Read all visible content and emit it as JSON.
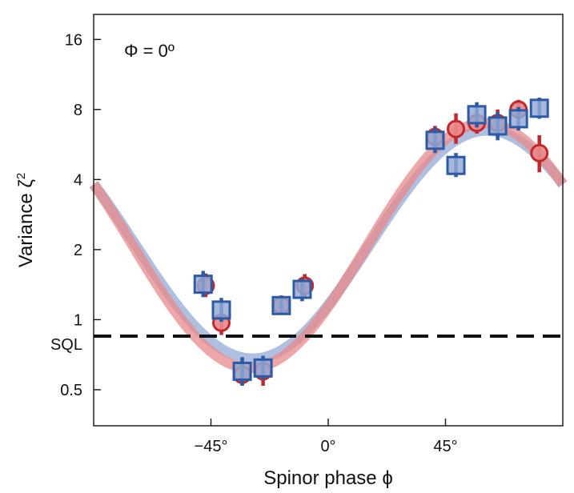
{
  "chart_data": {
    "type": "scatter",
    "title": "",
    "annotation": "Φ = 0º",
    "xlabel": "Spinor phase ϕ",
    "ylabel": "Variance ζ",
    "ylabel_sup": "2",
    "x_unit": "degrees",
    "y_scale": "log2",
    "xlim": [
      -90,
      90
    ],
    "ylim": [
      0.35,
      20.5
    ],
    "x_ticks": [
      {
        "value": -45,
        "label": "−45°"
      },
      {
        "value": 0,
        "label": "0°"
      },
      {
        "value": 45,
        "label": "45°"
      }
    ],
    "y_ticks": [
      {
        "value": 0.5,
        "label": "0.5"
      },
      {
        "value": 1,
        "label": "1"
      },
      {
        "value": 2,
        "label": "2"
      },
      {
        "value": 4,
        "label": "4"
      },
      {
        "value": 8,
        "label": "8"
      },
      {
        "value": 16,
        "label": "16"
      }
    ],
    "reference_line": {
      "label": "SQL",
      "value": 0.85,
      "style": "dashed",
      "color": "#111111"
    },
    "series": [
      {
        "name": "circles",
        "marker": "circle",
        "fill": "#e8898b",
        "edge": "#c0282c",
        "points": [
          {
            "x": -47,
            "y": 1.4,
            "err": [
              1.25,
              1.58
            ]
          },
          {
            "x": -41,
            "y": 0.97,
            "err": [
              0.86,
              1.1
            ]
          },
          {
            "x": -33,
            "y": 0.58,
            "err": [
              0.52,
              0.65
            ]
          },
          {
            "x": -25,
            "y": 0.6,
            "err": [
              0.52,
              0.68
            ]
          },
          {
            "x": -18,
            "y": 1.15,
            "err": [
              1.05,
              1.27
            ]
          },
          {
            "x": -9,
            "y": 1.4,
            "err": [
              1.25,
              1.57
            ]
          },
          {
            "x": 41,
            "y": 6.1,
            "err": [
              5.5,
              6.8
            ]
          },
          {
            "x": 49,
            "y": 6.6,
            "err": [
              5.7,
              7.7
            ]
          },
          {
            "x": 57,
            "y": 7.0,
            "err": [
              6.3,
              7.8
            ]
          },
          {
            "x": 65,
            "y": 7.0,
            "err": [
              6.1,
              8.0
            ]
          },
          {
            "x": 73,
            "y": 8.0,
            "err": [
              7.3,
              8.8
            ]
          },
          {
            "x": 81,
            "y": 5.2,
            "err": [
              4.3,
              6.2
            ]
          }
        ],
        "fit": {
          "center": -30,
          "min": 0.62,
          "max": 7.0
        }
      },
      {
        "name": "squares",
        "marker": "square",
        "fill": "#93aad6",
        "edge": "#2d5aa5",
        "points": [
          {
            "x": -48,
            "y": 1.42,
            "err": [
              1.25,
              1.62
            ]
          },
          {
            "x": -41,
            "y": 1.1,
            "err": [
              0.98,
              1.24
            ]
          },
          {
            "x": -33,
            "y": 0.6,
            "err": [
              0.52,
              0.69
            ]
          },
          {
            "x": -25,
            "y": 0.62,
            "err": [
              0.55,
              0.7
            ]
          },
          {
            "x": -18,
            "y": 1.15,
            "err": [
              1.05,
              1.27
            ]
          },
          {
            "x": -10,
            "y": 1.35,
            "err": [
              1.2,
              1.5
            ]
          },
          {
            "x": 41,
            "y": 5.9,
            "err": [
              5.2,
              6.7
            ]
          },
          {
            "x": 49,
            "y": 4.6,
            "err": [
              4.1,
              5.2
            ]
          },
          {
            "x": 57,
            "y": 7.6,
            "err": [
              6.7,
              8.6
            ]
          },
          {
            "x": 65,
            "y": 6.8,
            "err": [
              5.9,
              7.8
            ]
          },
          {
            "x": 73,
            "y": 7.3,
            "err": [
              6.5,
              8.2
            ]
          },
          {
            "x": 81,
            "y": 8.1,
            "err": [
              7.3,
              9.0
            ]
          }
        ],
        "fit": {
          "center": -29,
          "min": 0.68,
          "max": 6.5
        }
      }
    ]
  }
}
